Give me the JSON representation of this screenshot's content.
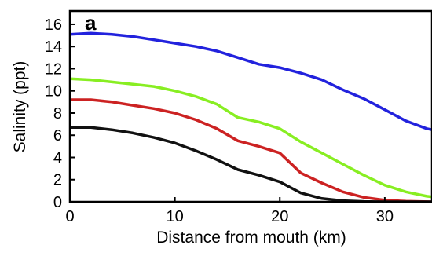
{
  "chart_data": {
    "type": "line",
    "panel_label": "a",
    "title": "",
    "xlabel": "Distance from mouth (km)",
    "ylabel": "Salinity (ppt)",
    "xlim": [
      0,
      34.5
    ],
    "ylim": [
      0,
      17.2
    ],
    "x_ticks": [
      0,
      10,
      20,
      30
    ],
    "y_ticks": [
      0,
      2,
      4,
      6,
      8,
      10,
      12,
      14,
      16
    ],
    "grid": false,
    "legend": "none",
    "series": [
      {
        "color": "#2222dd",
        "points": [
          [
            0,
            15.1
          ],
          [
            2,
            15.2
          ],
          [
            4,
            15.1
          ],
          [
            6,
            14.9
          ],
          [
            8,
            14.6
          ],
          [
            10,
            14.3
          ],
          [
            12,
            14.0
          ],
          [
            14,
            13.6
          ],
          [
            16,
            13.0
          ],
          [
            18,
            12.4
          ],
          [
            20,
            12.1
          ],
          [
            22,
            11.6
          ],
          [
            24,
            11.0
          ],
          [
            26,
            10.1
          ],
          [
            28,
            9.3
          ],
          [
            30,
            8.3
          ],
          [
            32,
            7.3
          ],
          [
            34,
            6.6
          ],
          [
            34.5,
            6.5
          ]
        ]
      },
      {
        "color": "#88ee22",
        "points": [
          [
            0,
            11.1
          ],
          [
            2,
            11.0
          ],
          [
            4,
            10.8
          ],
          [
            6,
            10.6
          ],
          [
            8,
            10.4
          ],
          [
            10,
            10.0
          ],
          [
            12,
            9.5
          ],
          [
            14,
            8.8
          ],
          [
            16,
            7.6
          ],
          [
            18,
            7.2
          ],
          [
            20,
            6.6
          ],
          [
            22,
            5.4
          ],
          [
            24,
            4.4
          ],
          [
            26,
            3.4
          ],
          [
            28,
            2.4
          ],
          [
            30,
            1.5
          ],
          [
            32,
            0.9
          ],
          [
            34,
            0.5
          ],
          [
            34.5,
            0.45
          ]
        ]
      },
      {
        "color": "#cc2222",
        "points": [
          [
            0,
            9.2
          ],
          [
            2,
            9.2
          ],
          [
            4,
            9.0
          ],
          [
            6,
            8.7
          ],
          [
            8,
            8.4
          ],
          [
            10,
            8.0
          ],
          [
            12,
            7.4
          ],
          [
            14,
            6.6
          ],
          [
            16,
            5.5
          ],
          [
            18,
            5.0
          ],
          [
            20,
            4.4
          ],
          [
            22,
            2.6
          ],
          [
            24,
            1.7
          ],
          [
            26,
            0.9
          ],
          [
            28,
            0.4
          ],
          [
            30,
            0.15
          ],
          [
            32,
            0.05
          ],
          [
            34.5,
            0.0
          ]
        ]
      },
      {
        "color": "#111111",
        "points": [
          [
            0,
            6.7
          ],
          [
            2,
            6.7
          ],
          [
            4,
            6.5
          ],
          [
            6,
            6.2
          ],
          [
            8,
            5.8
          ],
          [
            10,
            5.3
          ],
          [
            12,
            4.6
          ],
          [
            14,
            3.8
          ],
          [
            16,
            2.9
          ],
          [
            18,
            2.4
          ],
          [
            20,
            1.8
          ],
          [
            22,
            0.8
          ],
          [
            24,
            0.3
          ],
          [
            26,
            0.1
          ],
          [
            28,
            0.03
          ],
          [
            30,
            0.0
          ],
          [
            34.5,
            0.0
          ]
        ]
      }
    ]
  }
}
